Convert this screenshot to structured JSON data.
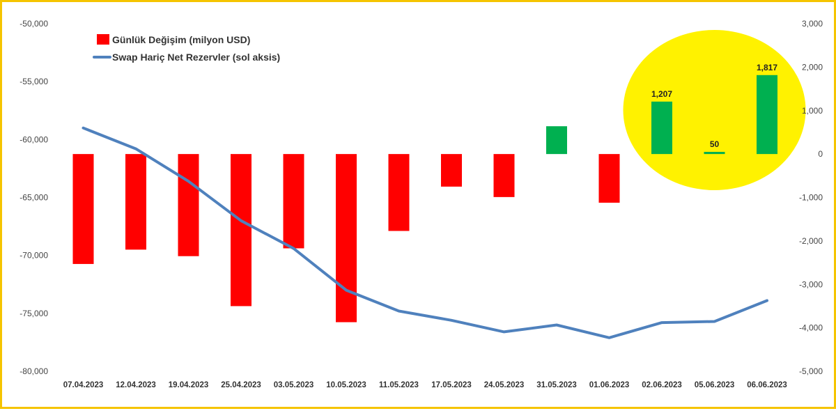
{
  "chart_data": {
    "type": "bar",
    "categories": [
      "07.04.2023",
      "12.04.2023",
      "19.04.2023",
      "25.04.2023",
      "03.05.2023",
      "10.05.2023",
      "11.05.2023",
      "17.05.2023",
      "24.05.2023",
      "31.05.2023",
      "01.06.2023",
      "02.06.2023",
      "05.06.2023",
      "06.06.2023"
    ],
    "series": [
      {
        "name": "Günlük Değişim (milyon USD)",
        "type": "bar",
        "axis": "right",
        "values": [
          -2530,
          -2200,
          -2350,
          -3500,
          -2170,
          -3870,
          -1770,
          -750,
          -990,
          640,
          -1120,
          1207,
          50,
          1817
        ],
        "colors": [
          "#ff0000",
          "#ff0000",
          "#ff0000",
          "#ff0000",
          "#ff0000",
          "#ff0000",
          "#ff0000",
          "#ff0000",
          "#ff0000",
          "#00b050",
          "#ff0000",
          "#00b050",
          "#00b050",
          "#00b050"
        ]
      },
      {
        "name": "Swap Hariç Net Rezervler (sol aksis)",
        "type": "line",
        "axis": "left",
        "color": "#4f81bd",
        "values": [
          -59000,
          -60800,
          -63600,
          -67000,
          -69400,
          -73000,
          -74800,
          -75600,
          -76600,
          -76000,
          -77100,
          -75800,
          -75700,
          -73900
        ]
      }
    ],
    "data_labels": [
      {
        "index": 11,
        "text": "1,207"
      },
      {
        "index": 12,
        "text": "50"
      },
      {
        "index": 13,
        "text": "1,817"
      }
    ],
    "y_left": {
      "min": -80000,
      "max": -50000,
      "ticks": [
        "-50,000",
        "-55,000",
        "-60,000",
        "-65,000",
        "-70,000",
        "-75,000",
        "-80,000"
      ]
    },
    "y_right": {
      "min": -5000,
      "max": 3000,
      "ticks": [
        "3,000",
        "2,000",
        "1,000",
        "0",
        "-1,000",
        "-2,000",
        "-3,000",
        "-4,000",
        "-5,000"
      ]
    },
    "grid": false,
    "legend_position": "top-left",
    "highlight": {
      "color": "#fff200",
      "covers": [
        "02.06.2023",
        "05.06.2023",
        "06.06.2023"
      ]
    }
  }
}
